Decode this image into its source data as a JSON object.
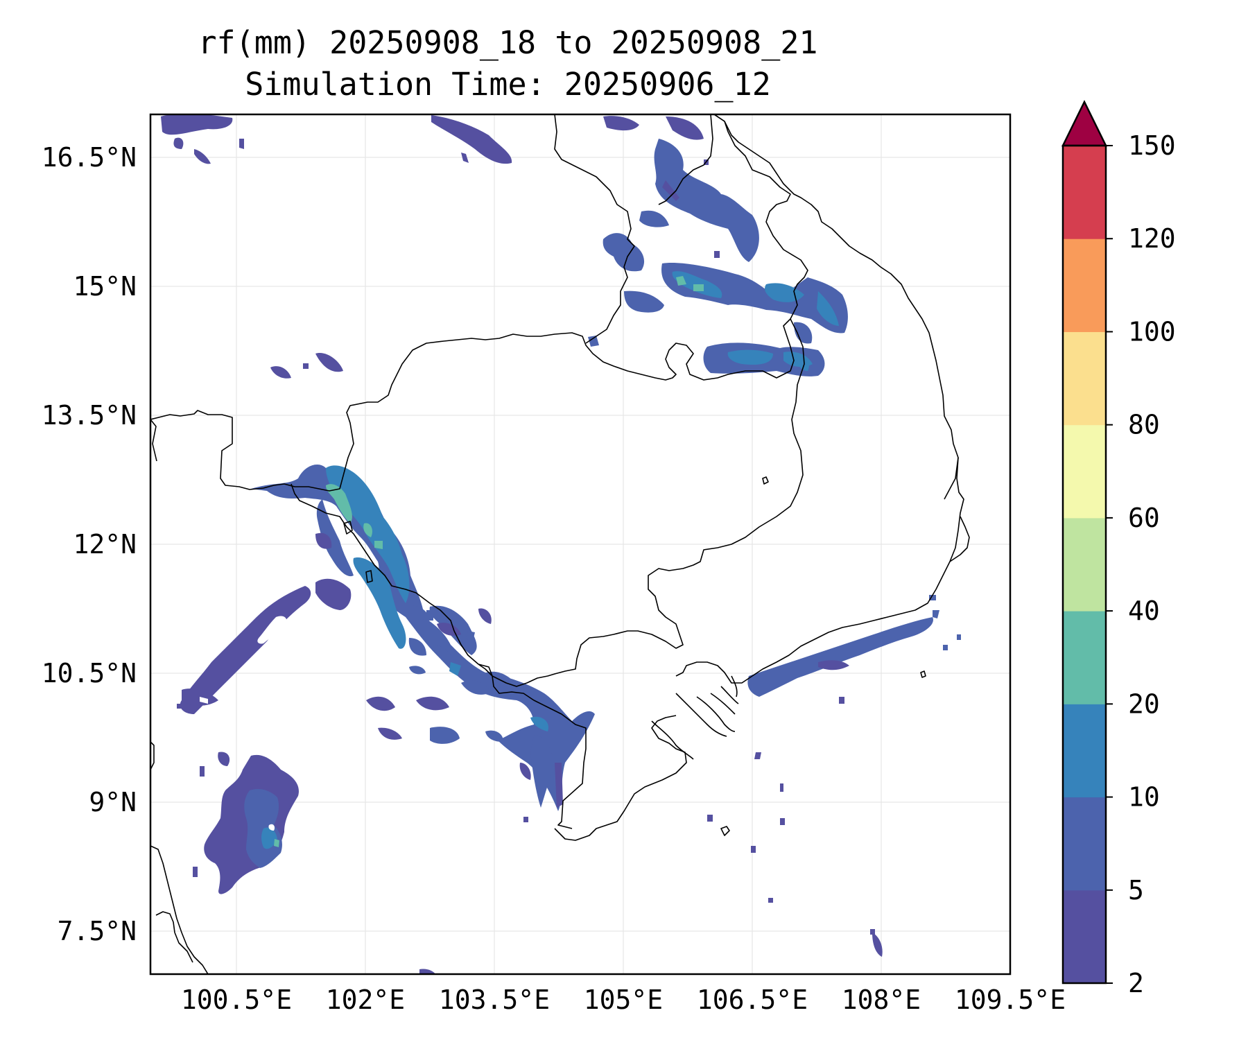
{
  "title": {
    "line1": "rf(mm) 20250908_18 to 20250908_21",
    "line2": "Simulation Time: 20250906_12"
  },
  "map": {
    "lon_range": [
      99.5,
      109.5
    ],
    "lat_range": [
      7.0,
      17.0
    ],
    "lon_ticks": [
      {
        "value": 100.5,
        "label": "100.5°E"
      },
      {
        "value": 102.0,
        "label": "102°E"
      },
      {
        "value": 103.5,
        "label": "103.5°E"
      },
      {
        "value": 105.0,
        "label": "105°E"
      },
      {
        "value": 106.5,
        "label": "106.5°E"
      },
      {
        "value": 108.0,
        "label": "108°E"
      },
      {
        "value": 109.5,
        "label": "109.5°E"
      }
    ],
    "lat_ticks": [
      {
        "value": 16.5,
        "label": "16.5°N"
      },
      {
        "value": 15.0,
        "label": "15°N"
      },
      {
        "value": 13.5,
        "label": "13.5°N"
      },
      {
        "value": 12.0,
        "label": "12°N"
      },
      {
        "value": 10.5,
        "label": "10.5°N"
      },
      {
        "value": 9.0,
        "label": "9°N"
      },
      {
        "value": 7.5,
        "label": "7.5°N"
      }
    ],
    "gridlines": true
  },
  "colorbar": {
    "extend": "max",
    "levels": [
      {
        "label": "2",
        "color": "#5550a0"
      },
      {
        "label": "5",
        "color": "#4c63ad"
      },
      {
        "label": "10",
        "color": "#3683bb"
      },
      {
        "label": "20",
        "color": "#62bca9"
      },
      {
        "label": "40",
        "color": "#bfe4a0"
      },
      {
        "label": "60",
        "color": "#f4f9ad"
      },
      {
        "label": "80",
        "color": "#fbdf8e"
      },
      {
        "label": "100",
        "color": "#f99b5a"
      },
      {
        "label": "120",
        "color": "#d53e4f"
      },
      {
        "label": "150",
        "color": "#9e0142"
      }
    ]
  }
}
